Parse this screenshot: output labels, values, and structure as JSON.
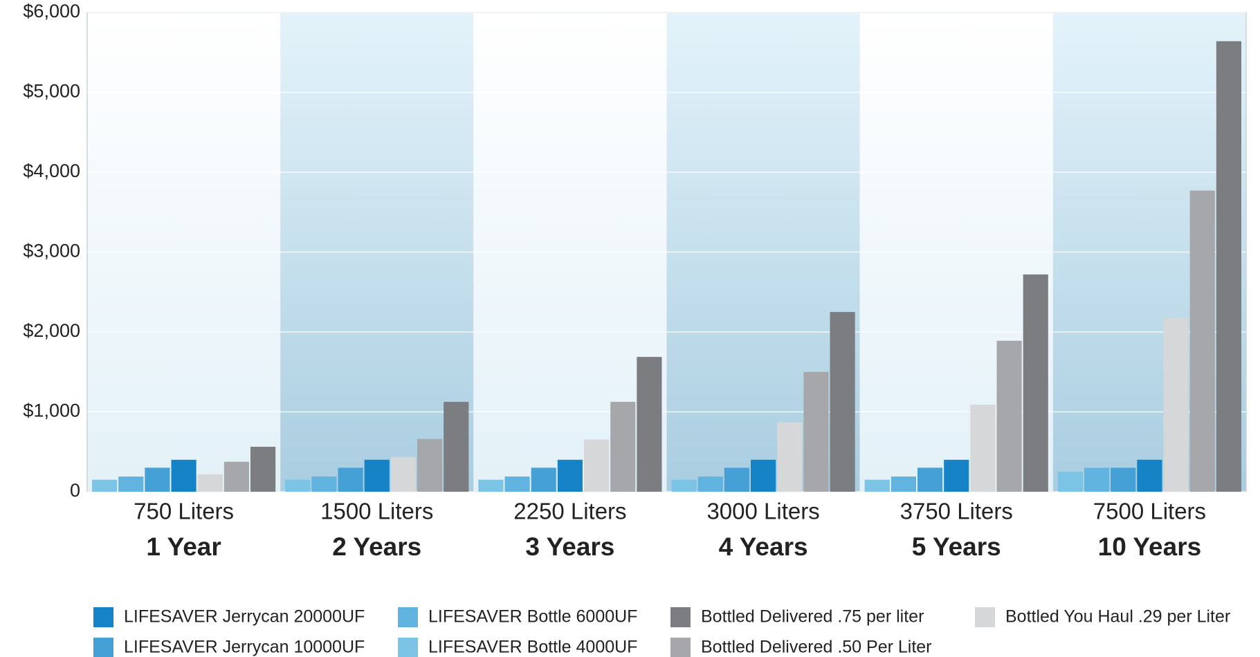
{
  "chart_data": {
    "type": "bar",
    "categories": [
      "750 Liters",
      "1500 Liters",
      "2250 Liters",
      "3000 Liters",
      "3750 Liters",
      "7500 Liters"
    ],
    "subcategories": [
      "1 Year",
      "2 Years",
      "3 Years",
      "4 Years",
      "5 Years",
      "10 Years"
    ],
    "series": [
      {
        "name": "LIFESAVER Bottle 4000UF",
        "color": "#7cc4e6",
        "values": [
          150,
          150,
          150,
          150,
          150,
          250
        ]
      },
      {
        "name": "LIFESAVER Bottle 6000UF",
        "color": "#62b4e0",
        "values": [
          190,
          190,
          190,
          190,
          190,
          300
        ]
      },
      {
        "name": "LIFESAVER Jerrycan 10000UF",
        "color": "#45a0d6",
        "values": [
          300,
          300,
          300,
          300,
          300,
          300
        ]
      },
      {
        "name": "LIFESAVER Jerrycan 20000UF",
        "color": "#1583c6",
        "values": [
          400,
          400,
          400,
          400,
          400,
          400
        ]
      },
      {
        "name": "Bottled You Haul .29 per Liter",
        "color": "#d6d7d9",
        "values": [
          217.5,
          435,
          652.5,
          870,
          1090,
          2175
        ]
      },
      {
        "name": "Bottled Delivered .50 Per Liter",
        "color": "#a6a7ab",
        "values": [
          375,
          660,
          1125,
          1500,
          1890,
          3770
        ]
      },
      {
        "name": "Bottled Delivered .75 per liter",
        "color": "#7c7d81",
        "values": [
          562.5,
          1125,
          1687.5,
          2250,
          2720,
          5640
        ]
      }
    ],
    "ylim": [
      0,
      6000
    ],
    "yticks": [
      0,
      {
        "value": 1000,
        "label": "$1,000"
      },
      {
        "value": 2000,
        "label": "$2,000"
      },
      {
        "value": 3000,
        "label": "$3,000"
      },
      {
        "value": 4000,
        "label": "$4,000"
      },
      {
        "value": 5000,
        "label": "$5,000"
      },
      {
        "value": 6000,
        "label": "$6,000"
      }
    ],
    "grid": true
  }
}
